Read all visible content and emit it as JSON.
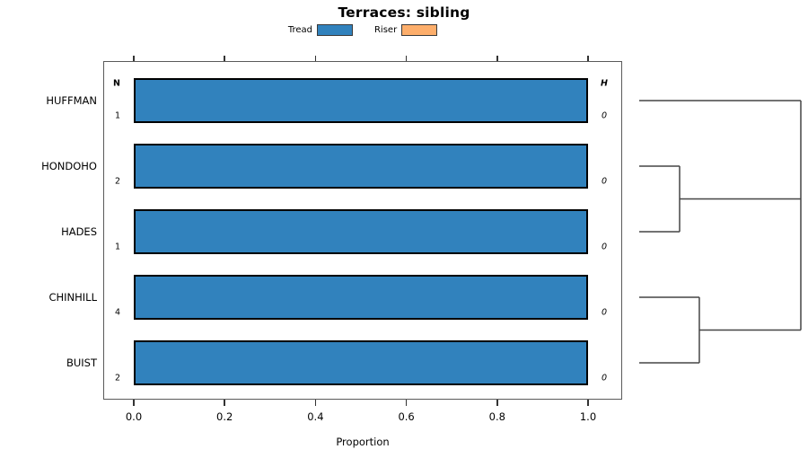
{
  "columns": {
    "left_header": "N",
    "right_header": "H"
  },
  "chart_data": {
    "type": "bar",
    "orientation": "horizontal",
    "title": "Terraces: sibling",
    "xlabel": "Proportion",
    "xlim": [
      0,
      1
    ],
    "x_ticks": {
      "labels": [
        "0.0",
        "0.2",
        "0.4",
        "0.6",
        "0.8",
        "1.0"
      ],
      "values": [
        0,
        0.2,
        0.4,
        0.6,
        0.8,
        1.0
      ]
    },
    "categories": [
      "HUFFMAN",
      "HONDOHO",
      "HADES",
      "CHINHILL",
      "BUIST"
    ],
    "series": [
      {
        "name": "Tread",
        "color": "#3182bd",
        "values": [
          1.0,
          1.0,
          1.0,
          1.0,
          1.0
        ]
      },
      {
        "name": "Riser",
        "color": "#fdae6b",
        "values": [
          0,
          0,
          0,
          0,
          0
        ]
      }
    ],
    "n_values": [
      1,
      2,
      1,
      4,
      2
    ],
    "h_values": [
      0,
      0,
      0,
      0,
      0
    ],
    "legend_position": "top",
    "grid": false,
    "dendrogram": {
      "description": "right-side cluster tree over rows; x=0 at leaves, x=1 at root",
      "segments": [
        {
          "x1": 0,
          "y1": 0,
          "x2": 1,
          "y2": 0
        },
        {
          "x1": 0,
          "y1": 1,
          "x2": 0.25,
          "y2": 1
        },
        {
          "x1": 0,
          "y1": 2,
          "x2": 0.25,
          "y2": 2
        },
        {
          "x1": 0.25,
          "y1": 1,
          "x2": 0.25,
          "y2": 2
        },
        {
          "x1": 0.25,
          "y1": 1.5,
          "x2": 1,
          "y2": 1.5
        },
        {
          "x1": 0,
          "y1": 3,
          "x2": 0.372,
          "y2": 3
        },
        {
          "x1": 0,
          "y1": 4,
          "x2": 0.372,
          "y2": 4
        },
        {
          "x1": 0.372,
          "y1": 3,
          "x2": 0.372,
          "y2": 4
        },
        {
          "x1": 0.372,
          "y1": 3.5,
          "x2": 1,
          "y2": 3.5
        },
        {
          "x1": 1,
          "y1": 0,
          "x2": 1,
          "y2": 3.5
        }
      ]
    }
  }
}
